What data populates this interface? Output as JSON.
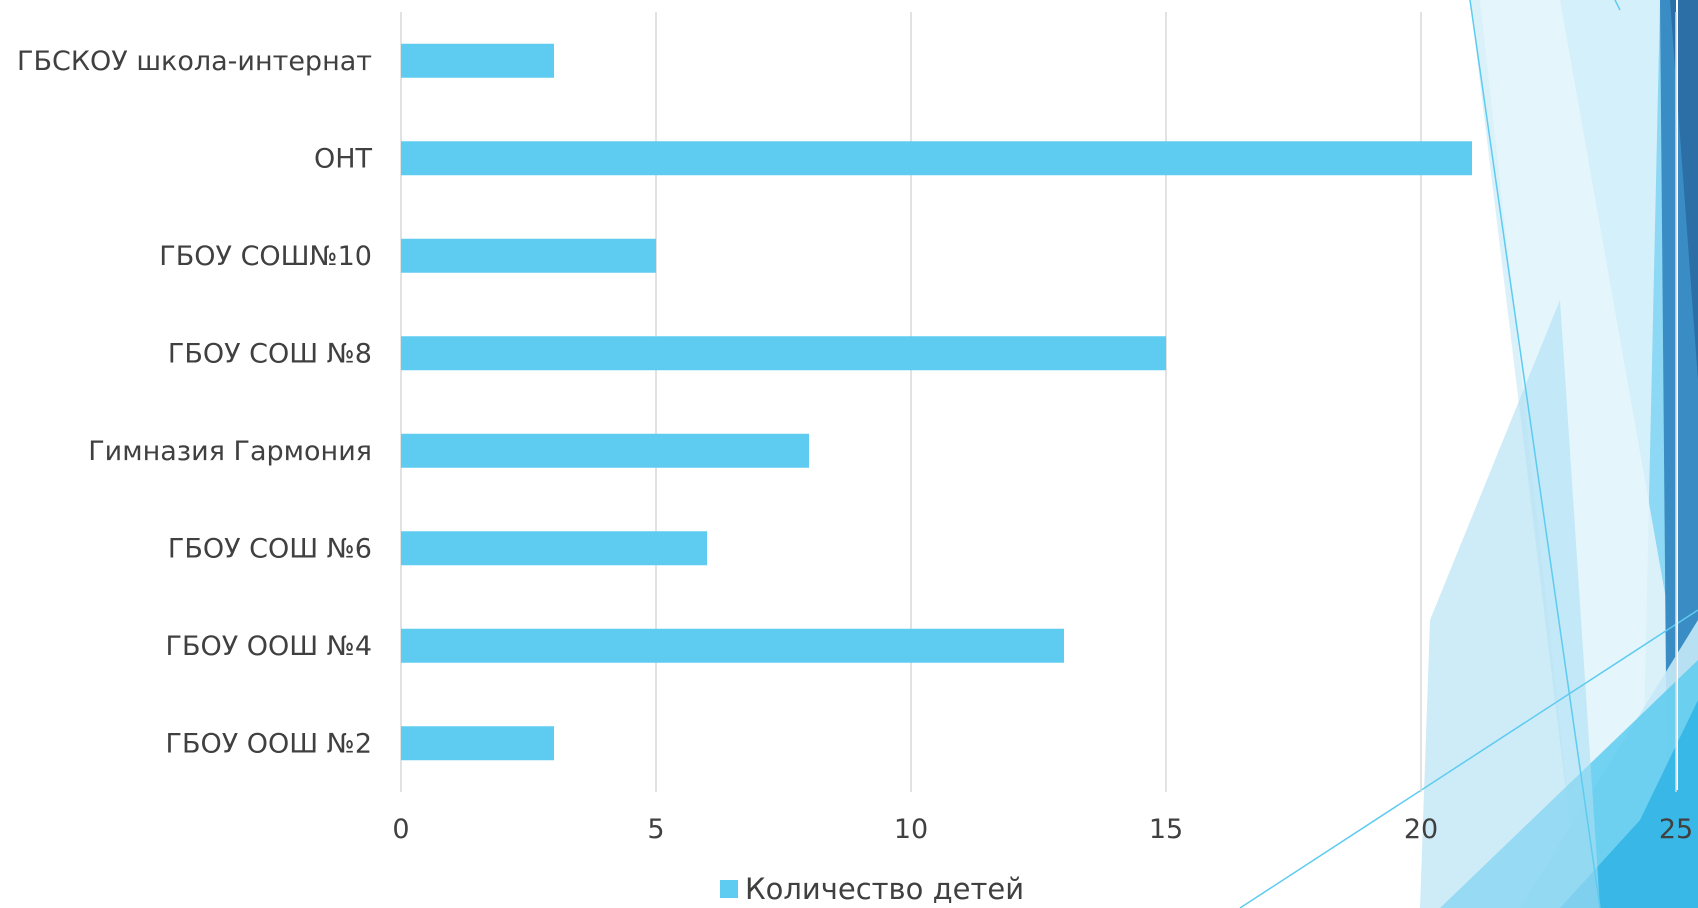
{
  "chart_data": {
    "type": "bar",
    "orientation": "horizontal",
    "categories": [
      "ГБСКОУ школа-интернат",
      "ОНТ",
      "ГБОУ СОШ№10",
      "ГБОУ СОШ №8",
      "Гимназия Гармония",
      "ГБОУ СОШ №6",
      "ГБОУ ООШ №4",
      "ГБОУ ООШ №2"
    ],
    "series": [
      {
        "name": "Количество детей",
        "values": [
          3,
          21,
          5,
          15,
          8,
          6,
          13,
          3
        ],
        "color": "#5ecbf0"
      }
    ],
    "xlim": [
      0,
      25
    ],
    "x_ticks": [
      0,
      5,
      10,
      15,
      20,
      25
    ],
    "grid": "vertical",
    "legend_position": "bottom"
  },
  "colors": {
    "gridline": "#d9d9d9",
    "text": "#404040",
    "decor_light": "#c5e9f7",
    "decor_mid": "#5ecbf0",
    "decor_dark": "#2e7bb8"
  }
}
